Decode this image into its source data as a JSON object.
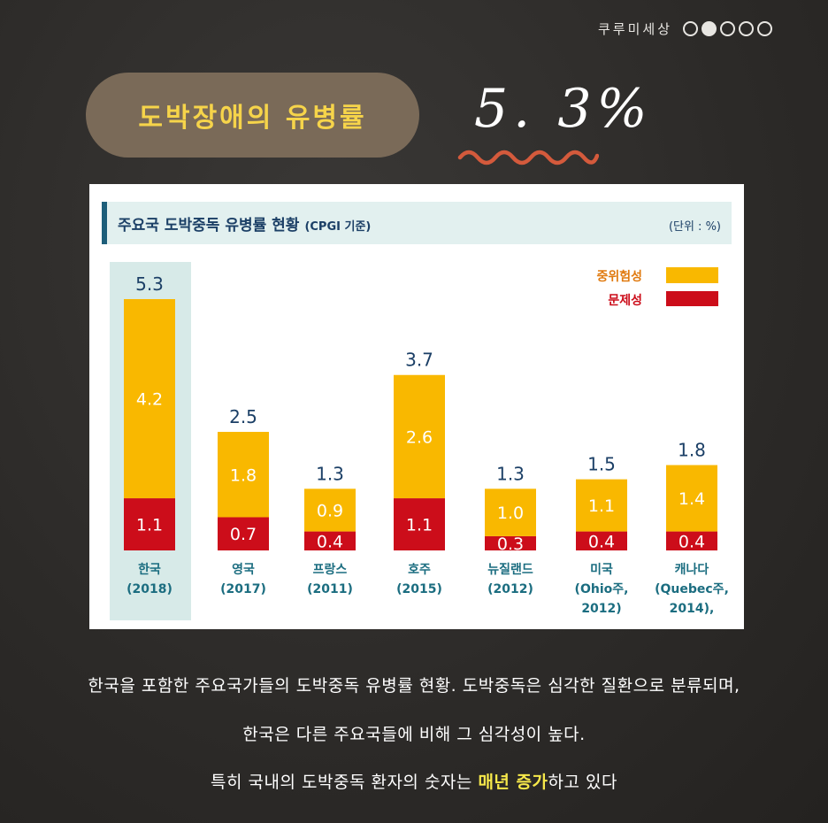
{
  "header": {
    "brand": "쿠루미세상",
    "page_dots": [
      false,
      true,
      false,
      false,
      false
    ]
  },
  "title_pill": "도박장애의 유병률",
  "headline_value": "5. 3%",
  "chart_data": {
    "type": "bar",
    "title": "주요국 도박중독 유병률 현황",
    "subtitle": "(CPGI 기준)",
    "unit": "(단위 : %)",
    "categories": [
      [
        "한국",
        "(2018)"
      ],
      [
        "영국",
        "(2017)"
      ],
      [
        "프랑스",
        "(2011)"
      ],
      [
        "호주",
        "(2015)"
      ],
      [
        "뉴질랜드",
        "(2012)"
      ],
      [
        "미국",
        "(Ohio주,",
        "2012)"
      ],
      [
        "캐나다",
        "(Quebec주,",
        "2014),"
      ]
    ],
    "series": [
      {
        "name": "문제성",
        "color": "#cc0d1a",
        "values": [
          1.1,
          0.7,
          0.4,
          1.1,
          0.3,
          0.4,
          0.4
        ]
      },
      {
        "name": "중위험성",
        "color": "#f9b800",
        "values": [
          4.2,
          1.8,
          0.9,
          2.6,
          1.0,
          1.1,
          1.4
        ]
      }
    ],
    "totals": [
      "5.3",
      "2.5",
      "1.3",
      "3.7",
      "1.3",
      "1.5",
      "1.8"
    ],
    "bottom_labels": [
      "1.1",
      "0.7",
      "0.4",
      "1.1",
      "0.3",
      "0.4",
      "0.4"
    ],
    "top_labels": [
      "4.2",
      "1.8",
      "0.9",
      "2.6",
      "1.0",
      "1.1",
      "1.4"
    ],
    "highlight_index": 0,
    "legend_position": "top-right",
    "ylim": [
      0,
      5.3
    ]
  },
  "caption": {
    "line1": "한국을 포함한 주요국가들의 도박중독 유병률 현황. 도박중독은 심각한 질환으로 분류되며,",
    "line2": "한국은 다른 주요국들에 비해 그 심각성이 높다.",
    "line3_pre": "특히 국내의 도박중독 환자의 숫자는 ",
    "line3_highlight": "매년 증가",
    "line3_post": "하고 있다"
  }
}
